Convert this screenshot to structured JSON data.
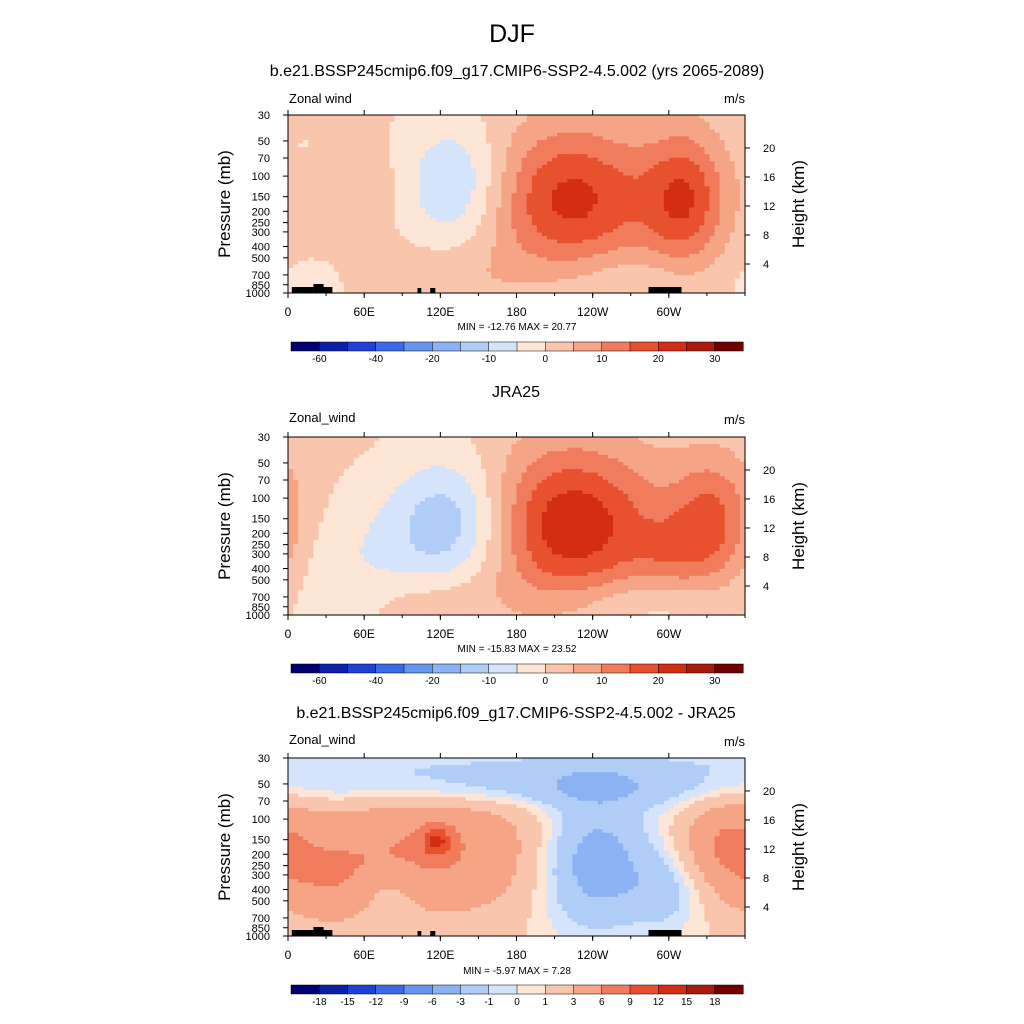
{
  "main_title": "DJF",
  "panels": [
    {
      "title": "b.e21.BSSP245cmip6.f09_g17.CMIP6-SSP2-4.5.002 (yrs 2065-2089)",
      "var_label": "Zonal wind",
      "units": "m/s",
      "left_axis_label": "Pressure (mb)",
      "right_axis_label": "Height (km)",
      "minmax": "MIN = -12.76  MAX =  20.77",
      "cbar_ticks": [
        "-60",
        "-40",
        "-20",
        "-10",
        "0",
        "10",
        "20",
        "30"
      ]
    },
    {
      "title": "JRA25",
      "var_label": "Zonal_wind",
      "units": "m/s",
      "left_axis_label": "Pressure (mb)",
      "right_axis_label": "Height (km)",
      "minmax": "MIN = -15.83  MAX =  23.52",
      "cbar_ticks": [
        "-60",
        "-40",
        "-20",
        "-10",
        "0",
        "10",
        "20",
        "30"
      ]
    },
    {
      "title": "b.e21.BSSP245cmip6.f09_g17.CMIP6-SSP2-4.5.002 - JRA25",
      "var_label": "Zonal_wind",
      "units": "m/s",
      "left_axis_label": "Pressure (mb)",
      "right_axis_label": "Height (km)",
      "minmax": "MIN = -5.97  MAX =  7.28",
      "cbar_ticks": [
        "-18",
        "-15",
        "-12",
        "-9",
        "-6",
        "-3",
        "-1",
        "0",
        "1",
        "3",
        "6",
        "9",
        "12",
        "15",
        "18"
      ]
    }
  ],
  "colors": {
    "palette16": [
      "#00006e",
      "#0c1fa8",
      "#1f40d5",
      "#3b6ae8",
      "#6695ee",
      "#8cb2f3",
      "#b0cdf7",
      "#d5e4fa",
      "#fde6d6",
      "#f9c6ad",
      "#f5a486",
      "#f07c5d",
      "#e8512f",
      "#d32e14",
      "#a81a0c",
      "#6e0000"
    ],
    "topo": "#000000"
  },
  "chart_data": [
    {
      "type": "heatmap",
      "title": "b.e21.BSSP245cmip6.f09_g17.CMIP6-SSP2-4.5.002 (yrs 2065-2089)",
      "variable": "Zonal wind",
      "units": "m/s",
      "xlabel": "",
      "ylabel": "Pressure (mb)",
      "y2label": "Height (km)",
      "x_ticks": [
        "0",
        "60E",
        "120E",
        "180",
        "120W",
        "60W"
      ],
      "x_range_deg": [
        0,
        360
      ],
      "y_ticks": [
        30,
        50,
        70,
        100,
        150,
        200,
        250,
        300,
        400,
        500,
        700,
        850,
        1000
      ],
      "y_scale": "log-pressure",
      "y_range": [
        30,
        1000
      ],
      "y2_ticks": [
        4,
        8,
        12,
        16,
        20
      ],
      "min": -12.76,
      "max": 20.77,
      "levels": [
        -70,
        -60,
        -50,
        -40,
        -30,
        -20,
        -15,
        -10,
        -5,
        0,
        5,
        10,
        15,
        20,
        25,
        30
      ],
      "colorbar_labels": [
        "-60",
        "-40",
        "-20",
        "-10",
        "0",
        "10",
        "20",
        "30"
      ],
      "blobs": [
        {
          "lon": 223,
          "p": 160,
          "value": 20.77,
          "width_deg": 110,
          "depth": 1.05
        },
        {
          "lon": 313,
          "p": 160,
          "value": 17.0,
          "width_deg": 52,
          "depth": 0.95
        },
        {
          "lon": 132,
          "p": 120,
          "value": -12.76,
          "width_deg": 70,
          "depth": 0.85
        },
        {
          "lon": 120,
          "p": 750,
          "value": 4.0,
          "width_deg": 100,
          "depth": 0.45
        },
        {
          "lon": 55,
          "p": 130,
          "value": 3.5,
          "width_deg": 80,
          "depth": 0.6
        },
        {
          "lon": 260,
          "p": 780,
          "value": -4.0,
          "width_deg": 120,
          "depth": 0.45
        },
        {
          "lon": 20,
          "p": 870,
          "value": -3.5,
          "width_deg": 40,
          "depth": 0.35
        },
        {
          "lon": 12,
          "p": 55,
          "value": -2.0,
          "width_deg": 15,
          "depth": 0.15
        }
      ]
    },
    {
      "type": "heatmap",
      "title": "JRA25",
      "variable": "Zonal_wind",
      "units": "m/s",
      "xlabel": "",
      "ylabel": "Pressure (mb)",
      "y2label": "Height (km)",
      "x_ticks": [
        "0",
        "60E",
        "120E",
        "180",
        "120W",
        "60W"
      ],
      "x_range_deg": [
        0,
        360
      ],
      "y_ticks": [
        30,
        50,
        70,
        100,
        150,
        200,
        250,
        300,
        400,
        500,
        700,
        850,
        1000
      ],
      "y_scale": "log-pressure",
      "y_range": [
        30,
        1000
      ],
      "y2_ticks": [
        4,
        8,
        12,
        16,
        20
      ],
      "min": -15.83,
      "max": 23.52,
      "levels": [
        -70,
        -60,
        -50,
        -40,
        -30,
        -20,
        -15,
        -10,
        -5,
        0,
        5,
        10,
        15,
        20,
        25,
        30
      ],
      "colorbar_labels": [
        "-60",
        "-40",
        "-20",
        "-10",
        "0",
        "10",
        "20",
        "30"
      ],
      "blobs": [
        {
          "lon": 222,
          "p": 170,
          "value": 23.52,
          "width_deg": 115,
          "depth": 1.1
        },
        {
          "lon": 335,
          "p": 160,
          "value": 15.0,
          "width_deg": 55,
          "depth": 0.9
        },
        {
          "lon": 130,
          "p": 160,
          "value": -15.83,
          "width_deg": 80,
          "depth": 0.9
        },
        {
          "lon": 60,
          "p": 400,
          "value": -5.0,
          "width_deg": 100,
          "depth": 0.9
        },
        {
          "lon": 110,
          "p": 750,
          "value": 5.0,
          "width_deg": 90,
          "depth": 0.45
        },
        {
          "lon": 270,
          "p": 820,
          "value": -5.0,
          "width_deg": 110,
          "depth": 0.4
        },
        {
          "lon": 300,
          "p": 300,
          "value": 6.0,
          "width_deg": 50,
          "depth": 0.5
        }
      ]
    },
    {
      "type": "heatmap",
      "title": "b.e21.BSSP245cmip6.f09_g17.CMIP6-SSP2-4.5.002 - JRA25",
      "variable": "Zonal_wind",
      "units": "m/s",
      "xlabel": "",
      "ylabel": "Pressure (mb)",
      "y2label": "Height (km)",
      "x_ticks": [
        "0",
        "60E",
        "120E",
        "180",
        "120W",
        "60W"
      ],
      "x_range_deg": [
        0,
        360
      ],
      "y_ticks": [
        30,
        50,
        70,
        100,
        150,
        200,
        250,
        300,
        400,
        500,
        700,
        850,
        1000
      ],
      "y_scale": "log-pressure",
      "y_range": [
        30,
        1000
      ],
      "y2_ticks": [
        4,
        8,
        12,
        16,
        20
      ],
      "min": -5.97,
      "max": 7.28,
      "levels": [
        -21,
        -18,
        -15,
        -12,
        -9,
        -6,
        -3,
        -1,
        0,
        1,
        3,
        6,
        9,
        12,
        15,
        18
      ],
      "colorbar_labels": [
        "-18",
        "-15",
        "-12",
        "-9",
        "-6",
        "-3",
        "-1",
        "0",
        "1",
        "3",
        "6",
        "9",
        "12",
        "15",
        "18"
      ],
      "blobs": [
        {
          "lon": 180,
          "p": 52,
          "value": -3.5,
          "width_deg": 420,
          "depth": 0.3
        },
        {
          "lon": 200,
          "p": 34,
          "value": -1.5,
          "width_deg": 420,
          "depth": 0.18
        },
        {
          "lon": 110,
          "p": 190,
          "value": 5.5,
          "width_deg": 170,
          "depth": 0.9
        },
        {
          "lon": 117,
          "p": 155,
          "value": 7.28,
          "width_deg": 18,
          "depth": 0.2
        },
        {
          "lon": 240,
          "p": 230,
          "value": -5.97,
          "width_deg": 75,
          "depth": 0.9
        },
        {
          "lon": 345,
          "p": 170,
          "value": 4.5,
          "width_deg": 55,
          "depth": 0.7
        },
        {
          "lon": 300,
          "p": 420,
          "value": -2.5,
          "width_deg": 50,
          "depth": 0.5
        },
        {
          "lon": 80,
          "p": 450,
          "value": -2.0,
          "width_deg": 35,
          "depth": 0.35
        },
        {
          "lon": 30,
          "p": 350,
          "value": 2.5,
          "width_deg": 60,
          "depth": 0.6
        }
      ]
    }
  ]
}
